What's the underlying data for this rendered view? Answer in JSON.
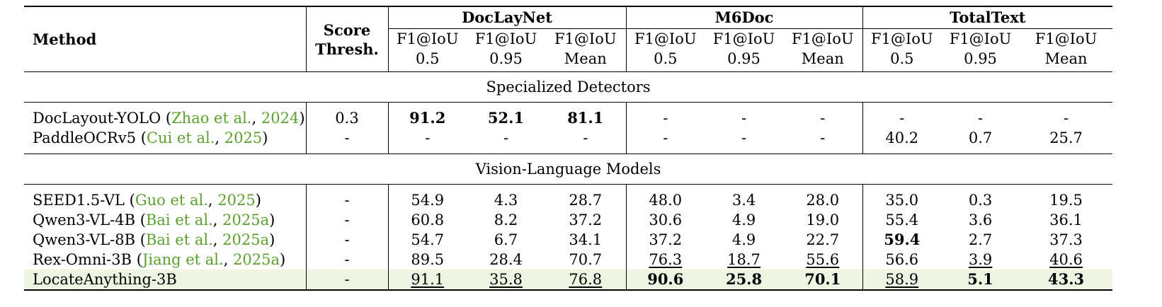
{
  "header": {
    "method": "Method",
    "score_thresh_1": "Score",
    "score_thresh_2": "Thresh.",
    "groups": [
      "DocLayNet",
      "M6Doc",
      "TotalText"
    ],
    "metric_line1": "F1@IoU",
    "metric_line2": [
      "0.5",
      "0.95",
      "Mean"
    ]
  },
  "sections": [
    {
      "title": "Specialized Detectors",
      "rows": [
        {
          "name": "DocLayout-YOLO (",
          "author": "Zhao et al.",
          "sep": ", ",
          "year": "2024",
          "close": ")",
          "thresh": "0.3",
          "values": [
            "91.2",
            "52.1",
            "81.1",
            "-",
            "-",
            "-",
            "-",
            "-",
            "-"
          ]
        },
        {
          "name": "PaddleOCRv5 (",
          "author": "Cui et al.",
          "sep": ", ",
          "year": "2025",
          "close": ")",
          "thresh": "-",
          "values": [
            "-",
            "-",
            "-",
            "-",
            "-",
            "-",
            "40.2",
            "0.7",
            "25.7"
          ]
        }
      ]
    },
    {
      "title": "Vision-Language Models",
      "rows": [
        {
          "name": "SEED1.5-VL (",
          "author": "Guo et al.",
          "sep": ", ",
          "year": "2025",
          "close": ")",
          "thresh": "-",
          "values": [
            "54.9",
            "4.3",
            "28.7",
            "48.0",
            "3.4",
            "28.0",
            "35.0",
            "0.3",
            "19.5"
          ]
        },
        {
          "name": "Qwen3-VL-4B (",
          "author": "Bai et al.",
          "sep": ", ",
          "year": "2025a",
          "close": ")",
          "thresh": "-",
          "values": [
            "60.8",
            "8.2",
            "37.2",
            "30.6",
            "4.9",
            "19.0",
            "55.4",
            "3.6",
            "36.1"
          ]
        },
        {
          "name": "Qwen3-VL-8B (",
          "author": "Bai et al.",
          "sep": ", ",
          "year": "2025a",
          "close": ")",
          "thresh": "-",
          "values": [
            "54.7",
            "6.7",
            "34.1",
            "37.2",
            "4.9",
            "22.7",
            "59.4",
            "2.7",
            "37.3"
          ]
        },
        {
          "name": "Rex-Omni-3B (",
          "author": "Jiang et al.",
          "sep": ", ",
          "year": "2025a",
          "close": ")",
          "thresh": "-",
          "values": [
            "89.5",
            "28.4",
            "70.7",
            "76.3",
            "18.7",
            "55.6",
            "56.6",
            "3.9",
            "40.6"
          ]
        },
        {
          "name": "LocateAnything-3B",
          "author": "",
          "sep": "",
          "year": "",
          "close": "",
          "thresh": "-",
          "values": [
            "91.1",
            "35.8",
            "76.8",
            "90.6",
            "25.8",
            "70.1",
            "58.9",
            "5.1",
            "43.3"
          ]
        }
      ]
    }
  ],
  "styles": {
    "bold": [
      [
        0,
        0,
        0
      ],
      [
        0,
        0,
        1
      ],
      [
        0,
        0,
        2
      ],
      [
        1,
        2,
        6
      ],
      [
        1,
        4,
        3
      ],
      [
        1,
        4,
        4
      ],
      [
        1,
        4,
        5
      ],
      [
        1,
        4,
        7
      ],
      [
        1,
        4,
        8
      ]
    ],
    "underline": [
      [
        1,
        3,
        3
      ],
      [
        1,
        3,
        4
      ],
      [
        1,
        3,
        5
      ],
      [
        1,
        3,
        7
      ],
      [
        1,
        3,
        8
      ],
      [
        1,
        4,
        0
      ],
      [
        1,
        4,
        1
      ],
      [
        1,
        4,
        2
      ],
      [
        1,
        4,
        6
      ]
    ],
    "highlight_row": [
      1,
      4
    ],
    "citation_color": "#5aa02c",
    "highlight_color": "#eef5e3"
  }
}
